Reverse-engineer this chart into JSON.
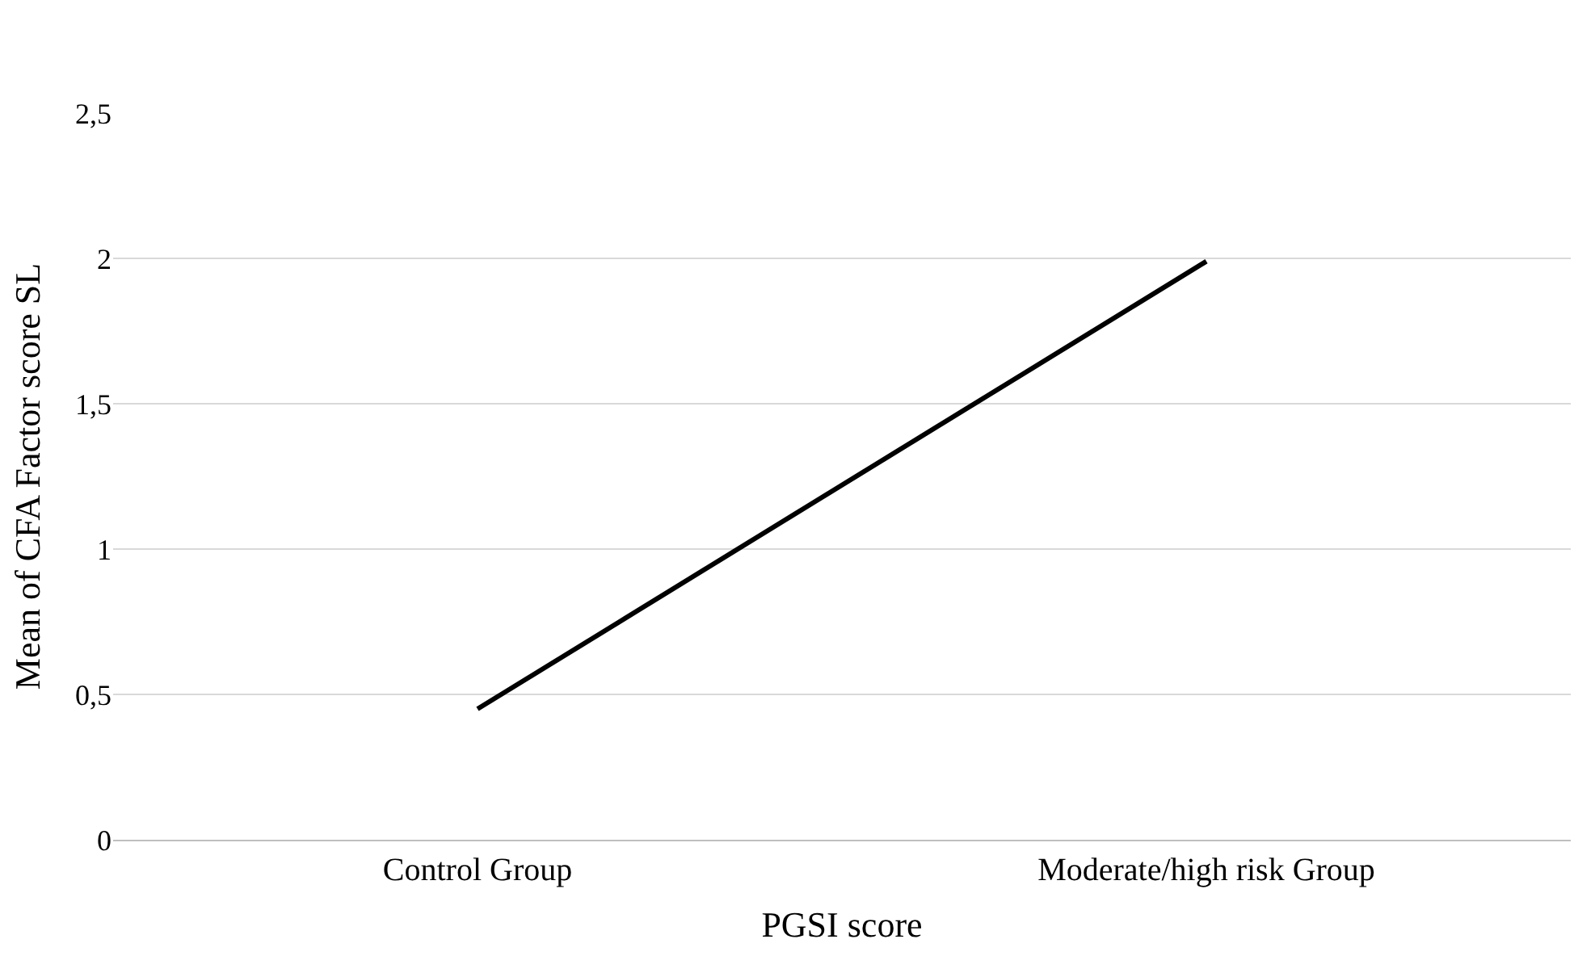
{
  "chart_data": {
    "type": "line",
    "xlabel": "PGSI score",
    "ylabel": "Mean of CFA Factor score SL",
    "categories": [
      "Control Group",
      "Moderate/high risk Group"
    ],
    "series": [
      {
        "color": "#000000",
        "values": [
          0.45,
          1.99
        ]
      }
    ],
    "ylim": [
      0,
      2.5
    ],
    "yticks": [
      0,
      {
        "value": 0.5,
        "label": "0,5"
      },
      1,
      {
        "value": 1.5,
        "label": "1,5"
      },
      2,
      {
        "value": 2.5,
        "label": "2,5"
      }
    ],
    "grid": "y",
    "marker": "none",
    "line_style": "solid"
  }
}
